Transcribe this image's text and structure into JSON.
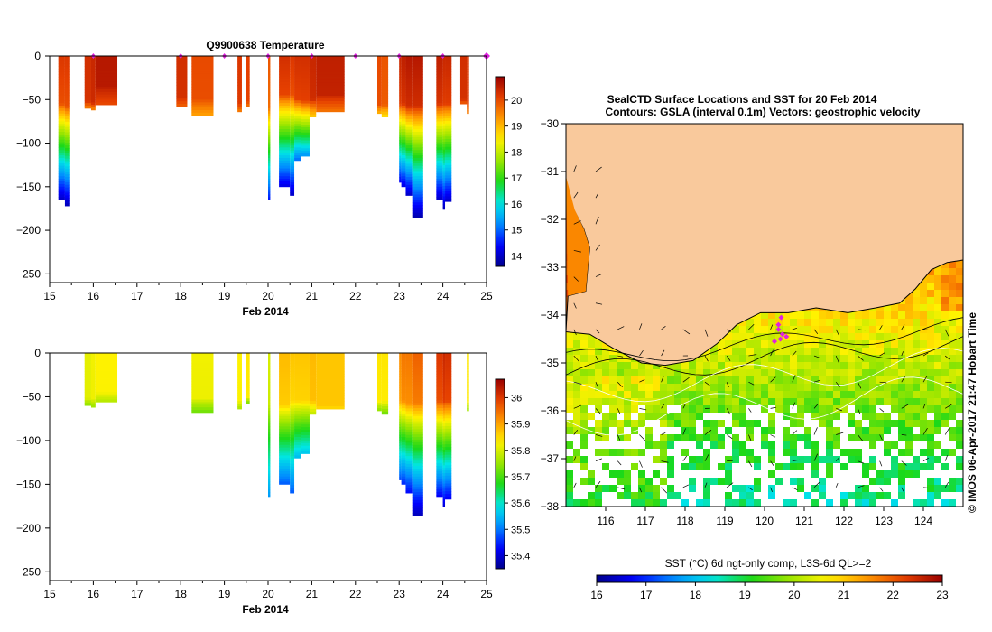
{
  "colors": {
    "land": "#f9c99c",
    "coast": "#000000",
    "marker": "#e020e0",
    "frame": "#000000"
  },
  "temperature_panel": {
    "title": "Q9900638  Temperature",
    "xlabel": "Feb 2014"
  },
  "salinity_panel": {
    "xlabel": "Feb 2014"
  },
  "map_panel": {
    "title_line1": "SealCTD Surface Locations and SST for 20 Feb 2014",
    "title_line2": "Contours: GSLA (interval 0.1m) Vectors: geostrophic velocity",
    "colorbar_label": "SST (°C) 6d ngt-only comp, L3S-6d QL>=2",
    "credit": "© IMOS 06-Apr-2017 21:47 Hobart Time"
  },
  "chart_data": [
    {
      "name": "temperature_sections",
      "type": "heatmap",
      "title": "Q9900638  Temperature",
      "xlabel": "Feb 2014",
      "ylabel": "",
      "xlim": [
        15,
        25
      ],
      "ylim": [
        -260,
        0
      ],
      "xticks": [
        15,
        16,
        17,
        18,
        19,
        20,
        21,
        22,
        23,
        24,
        25
      ],
      "yticks": [
        0,
        -50,
        -100,
        -150,
        -200,
        -250
      ],
      "colorbar": {
        "min": 13.6,
        "max": 20.9,
        "ticks": [
          14,
          15,
          16,
          17,
          18,
          19,
          20
        ]
      },
      "surface_markers_x": [
        16.0,
        18.0,
        19.0,
        20.0,
        21.0,
        22.0,
        23.0,
        24.0,
        25.0
      ],
      "profiles": [
        {
          "x0": 15.2,
          "x1": 15.35,
          "depth": 165,
          "surface": 20.2,
          "mixed": 55,
          "deep": 14.0
        },
        {
          "x0": 15.35,
          "x1": 15.45,
          "depth": 172,
          "surface": 20.2,
          "mixed": 58,
          "deep": 13.9
        },
        {
          "x0": 15.8,
          "x1": 15.95,
          "depth": 60,
          "surface": 20.3,
          "mixed": 52,
          "deep": 19.5
        },
        {
          "x0": 15.95,
          "x1": 16.05,
          "depth": 62,
          "surface": 20.4,
          "mixed": 54,
          "deep": 19.4
        },
        {
          "x0": 16.05,
          "x1": 16.55,
          "depth": 56,
          "surface": 20.6,
          "mixed": 35,
          "deep": 20.0
        },
        {
          "x0": 17.9,
          "x1": 18.15,
          "depth": 58,
          "surface": 20.3,
          "mixed": 48,
          "deep": 19.8
        },
        {
          "x0": 18.25,
          "x1": 18.75,
          "depth": 68,
          "surface": 20.0,
          "mixed": 50,
          "deep": 19.2
        },
        {
          "x0": 19.3,
          "x1": 19.4,
          "depth": 64,
          "surface": 20.2,
          "mixed": 55,
          "deep": 19.5
        },
        {
          "x0": 19.5,
          "x1": 19.58,
          "depth": 58,
          "surface": 20.1,
          "mixed": 52,
          "deep": 19.6
        },
        {
          "x0": 20.0,
          "x1": 20.05,
          "depth": 165,
          "surface": 19.9,
          "mixed": 60,
          "deep": 14.5
        },
        {
          "x0": 20.25,
          "x1": 20.5,
          "depth": 150,
          "surface": 20.3,
          "mixed": 45,
          "deep": 14.2
        },
        {
          "x0": 20.5,
          "x1": 20.6,
          "depth": 160,
          "surface": 20.2,
          "mixed": 45,
          "deep": 14.0
        },
        {
          "x0": 20.6,
          "x1": 20.75,
          "depth": 120,
          "surface": 20.3,
          "mixed": 50,
          "deep": 15.0
        },
        {
          "x0": 20.75,
          "x1": 20.95,
          "depth": 115,
          "surface": 20.3,
          "mixed": 52,
          "deep": 15.3
        },
        {
          "x0": 20.95,
          "x1": 21.1,
          "depth": 70,
          "surface": 20.4,
          "mixed": 50,
          "deep": 18.8
        },
        {
          "x0": 21.1,
          "x1": 21.75,
          "depth": 64,
          "surface": 20.5,
          "mixed": 45,
          "deep": 19.6
        },
        {
          "x0": 22.5,
          "x1": 22.6,
          "depth": 66,
          "surface": 20.0,
          "mixed": 56,
          "deep": 19.0
        },
        {
          "x0": 22.6,
          "x1": 22.75,
          "depth": 70,
          "surface": 19.9,
          "mixed": 56,
          "deep": 18.6
        },
        {
          "x0": 23.0,
          "x1": 23.05,
          "depth": 145,
          "surface": 20.4,
          "mixed": 55,
          "deep": 14.3
        },
        {
          "x0": 23.05,
          "x1": 23.15,
          "depth": 150,
          "surface": 20.5,
          "mixed": 55,
          "deep": 14.2
        },
        {
          "x0": 23.15,
          "x1": 23.3,
          "depth": 160,
          "surface": 20.6,
          "mixed": 58,
          "deep": 14.0
        },
        {
          "x0": 23.3,
          "x1": 23.55,
          "depth": 186,
          "surface": 20.6,
          "mixed": 58,
          "deep": 13.8
        },
        {
          "x0": 23.85,
          "x1": 24.0,
          "depth": 165,
          "surface": 20.5,
          "mixed": 55,
          "deep": 14.0
        },
        {
          "x0": 24.0,
          "x1": 24.05,
          "depth": 176,
          "surface": 20.4,
          "mixed": 55,
          "deep": 13.9
        },
        {
          "x0": 24.05,
          "x1": 24.2,
          "depth": 167,
          "surface": 20.4,
          "mixed": 55,
          "deep": 14.0
        },
        {
          "x0": 24.4,
          "x1": 24.55,
          "depth": 55,
          "surface": 20.3,
          "mixed": 50,
          "deep": 19.8
        },
        {
          "x0": 24.55,
          "x1": 24.6,
          "depth": 66,
          "surface": 20.2,
          "mixed": 52,
          "deep": 19.5
        }
      ]
    },
    {
      "name": "salinity_sections",
      "type": "heatmap",
      "xlabel": "Feb 2014",
      "ylabel": "",
      "xlim": [
        15,
        25
      ],
      "ylim": [
        -260,
        0
      ],
      "xticks": [
        15,
        16,
        17,
        18,
        19,
        20,
        21,
        22,
        23,
        24,
        25
      ],
      "yticks": [
        0,
        -50,
        -100,
        -150,
        -200,
        -250
      ],
      "colorbar": {
        "min": 35.35,
        "max": 36.07,
        "ticks": [
          35.4,
          35.5,
          35.6,
          35.7,
          35.8,
          35.9,
          36
        ]
      },
      "profiles": [
        {
          "x0": 15.8,
          "x1": 15.95,
          "depth": 60,
          "surface": 35.81,
          "mixed": 52,
          "deep": 35.74
        },
        {
          "x0": 15.95,
          "x1": 16.05,
          "depth": 62,
          "surface": 35.82,
          "mixed": 52,
          "deep": 35.75
        },
        {
          "x0": 16.05,
          "x1": 16.55,
          "depth": 56,
          "surface": 35.83,
          "mixed": 45,
          "deep": 35.77
        },
        {
          "x0": 18.25,
          "x1": 18.75,
          "depth": 68,
          "surface": 35.82,
          "mixed": 52,
          "deep": 35.72
        },
        {
          "x0": 19.3,
          "x1": 19.4,
          "depth": 64,
          "surface": 35.83,
          "mixed": 55,
          "deep": 35.76
        },
        {
          "x0": 19.5,
          "x1": 19.58,
          "depth": 58,
          "surface": 35.84,
          "mixed": 50,
          "deep": 35.72
        },
        {
          "x0": 20.0,
          "x1": 20.05,
          "depth": 165,
          "surface": 35.8,
          "mixed": 60,
          "deep": 35.52
        },
        {
          "x0": 20.25,
          "x1": 20.5,
          "depth": 150,
          "surface": 35.88,
          "mixed": 60,
          "deep": 35.48
        },
        {
          "x0": 20.5,
          "x1": 20.6,
          "depth": 160,
          "surface": 35.87,
          "mixed": 55,
          "deep": 35.48
        },
        {
          "x0": 20.6,
          "x1": 20.75,
          "depth": 120,
          "surface": 35.87,
          "mixed": 55,
          "deep": 35.55
        },
        {
          "x0": 20.75,
          "x1": 20.95,
          "depth": 115,
          "surface": 35.87,
          "mixed": 55,
          "deep": 35.56
        },
        {
          "x0": 20.95,
          "x1": 21.1,
          "depth": 70,
          "surface": 35.88,
          "mixed": 55,
          "deep": 35.78
        },
        {
          "x0": 21.1,
          "x1": 21.75,
          "depth": 64,
          "surface": 35.87,
          "mixed": 60,
          "deep": 35.85
        },
        {
          "x0": 22.5,
          "x1": 22.6,
          "depth": 66,
          "surface": 35.84,
          "mixed": 55,
          "deep": 35.74
        },
        {
          "x0": 22.6,
          "x1": 22.75,
          "depth": 70,
          "surface": 35.84,
          "mixed": 55,
          "deep": 35.72
        },
        {
          "x0": 23.0,
          "x1": 23.05,
          "depth": 145,
          "surface": 35.92,
          "mixed": 55,
          "deep": 35.47
        },
        {
          "x0": 23.05,
          "x1": 23.15,
          "depth": 150,
          "surface": 35.94,
          "mixed": 55,
          "deep": 35.45
        },
        {
          "x0": 23.15,
          "x1": 23.3,
          "depth": 160,
          "surface": 35.94,
          "mixed": 58,
          "deep": 35.43
        },
        {
          "x0": 23.3,
          "x1": 23.55,
          "depth": 186,
          "surface": 35.96,
          "mixed": 58,
          "deep": 35.38
        },
        {
          "x0": 23.85,
          "x1": 24.0,
          "depth": 165,
          "surface": 36.0,
          "mixed": 55,
          "deep": 35.42
        },
        {
          "x0": 24.0,
          "x1": 24.05,
          "depth": 176,
          "surface": 36.02,
          "mixed": 55,
          "deep": 35.4
        },
        {
          "x0": 24.05,
          "x1": 24.2,
          "depth": 167,
          "surface": 36.01,
          "mixed": 55,
          "deep": 35.42
        },
        {
          "x0": 24.55,
          "x1": 24.6,
          "depth": 66,
          "surface": 35.84,
          "mixed": 55,
          "deep": 35.75
        }
      ]
    },
    {
      "name": "sst_map",
      "type": "heatmap",
      "title": "SealCTD Surface Locations and SST for 20 Feb 2014",
      "subtitle": "Contours: GSLA (interval 0.1m) Vectors: geostrophic velocity",
      "xlabel": "",
      "ylabel": "",
      "xlim": [
        115,
        125
      ],
      "ylim": [
        -38,
        -30
      ],
      "xticks": [
        116,
        117,
        118,
        119,
        120,
        121,
        122,
        123,
        124
      ],
      "yticks": [
        -30,
        -31,
        -32,
        -33,
        -34,
        -35,
        -36,
        -37,
        -38
      ],
      "colorbar": {
        "label": "SST (°C) 6d ngt-only comp, L3S-6d QL>=2",
        "min": 16,
        "max": 23,
        "ticks": [
          16,
          17,
          18,
          19,
          20,
          21,
          22,
          23
        ]
      },
      "coastline": [
        [
          115.0,
          -31.3
        ],
        [
          115.2,
          -31.8
        ],
        [
          115.45,
          -32.2
        ],
        [
          115.6,
          -32.6
        ],
        [
          115.55,
          -33.0
        ],
        [
          115.5,
          -33.5
        ],
        [
          115.05,
          -33.6
        ],
        [
          115.0,
          -34.35
        ],
        [
          115.6,
          -34.4
        ],
        [
          116.2,
          -34.7
        ],
        [
          116.9,
          -35.0
        ],
        [
          117.5,
          -35.05
        ],
        [
          118.2,
          -34.95
        ],
        [
          118.8,
          -34.6
        ],
        [
          119.3,
          -34.2
        ],
        [
          119.9,
          -33.95
        ],
        [
          120.6,
          -33.95
        ],
        [
          121.3,
          -33.85
        ],
        [
          122.1,
          -33.95
        ],
        [
          122.8,
          -33.85
        ],
        [
          123.4,
          -33.75
        ],
        [
          123.8,
          -33.45
        ],
        [
          124.2,
          -33.05
        ],
        [
          124.6,
          -32.9
        ],
        [
          125.0,
          -32.85
        ]
      ],
      "ctd_locations": [
        {
          "lon": 120.35,
          "lat": -34.3
        },
        {
          "lon": 120.45,
          "lat": -34.4
        },
        {
          "lon": 120.55,
          "lat": -34.45
        },
        {
          "lon": 120.4,
          "lat": -34.5
        },
        {
          "lon": 120.25,
          "lat": -34.55
        },
        {
          "lon": 120.35,
          "lat": -34.2
        },
        {
          "lon": 120.42,
          "lat": -34.05
        }
      ]
    }
  ]
}
